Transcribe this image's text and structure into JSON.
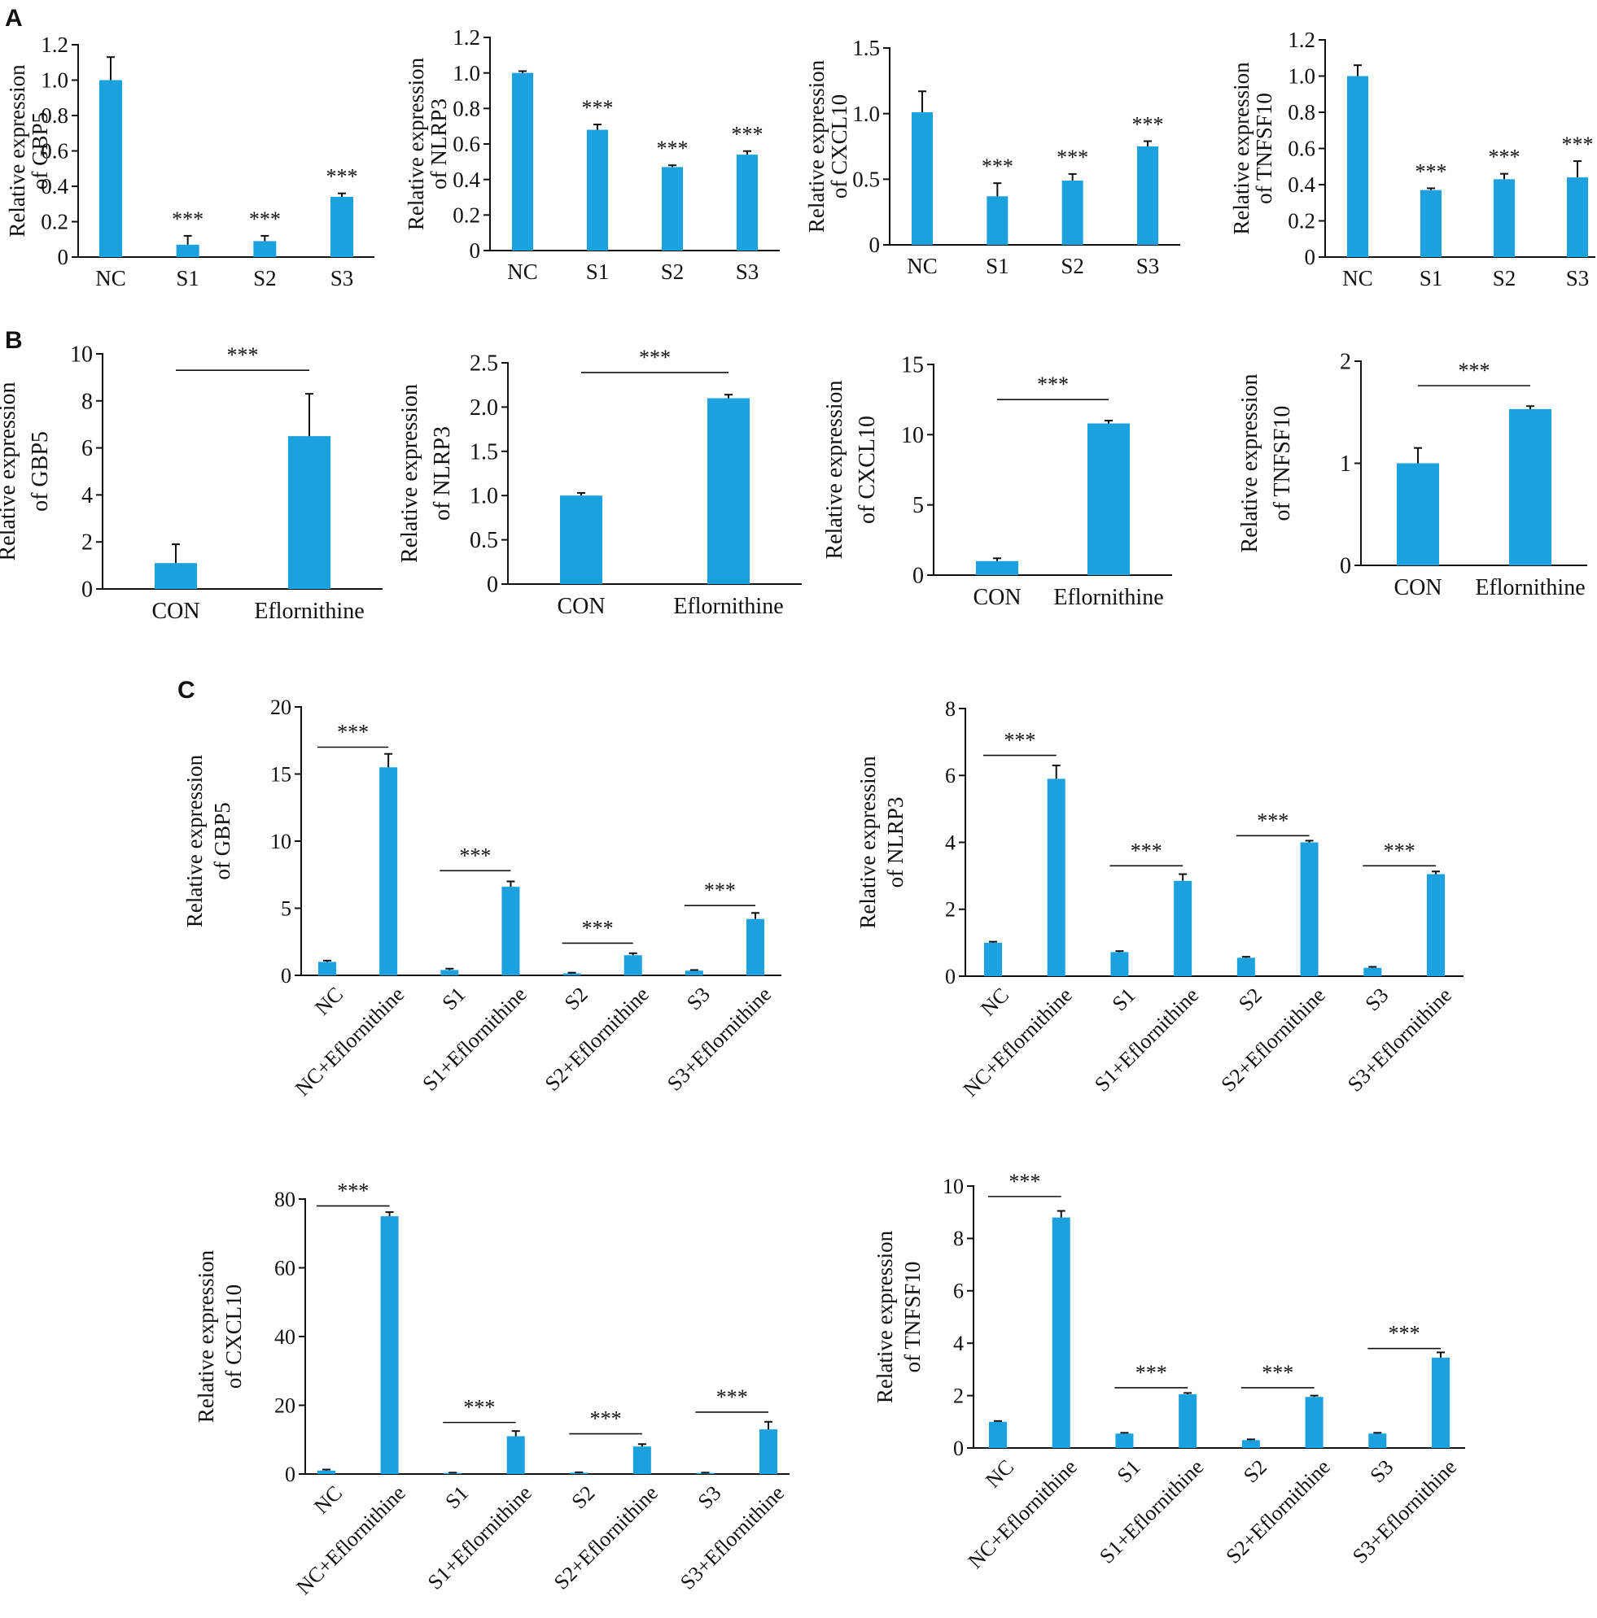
{
  "colors": {
    "bar": "#1BA1DE",
    "ink": "#111111",
    "background": "#FFFFFF"
  },
  "panels": [
    "A",
    "B",
    "C"
  ],
  "chart_data": [
    {
      "type": "bar",
      "panel": "A",
      "title": "",
      "xlabel": "",
      "ylabel": [
        "Relative expression",
        "of GBP5"
      ],
      "categories": [
        "NC",
        "S1",
        "S2",
        "S3"
      ],
      "values": [
        1.0,
        0.07,
        0.09,
        0.34
      ],
      "errors": [
        0.13,
        0.05,
        0.03,
        0.02
      ],
      "significance": [
        "",
        "***",
        "***",
        "***"
      ],
      "comparisons": [],
      "ylim": [
        0,
        1.2
      ],
      "yticks": [
        "0",
        "0.2",
        "0.4",
        "0.6",
        "0.8",
        "1.0",
        "1.2"
      ],
      "rotate_xticks": false
    },
    {
      "type": "bar",
      "panel": "A",
      "title": "",
      "xlabel": "",
      "ylabel": [
        "Relative expression",
        "of NLRP3"
      ],
      "categories": [
        "NC",
        "S1",
        "S2",
        "S3"
      ],
      "values": [
        1.0,
        0.68,
        0.47,
        0.54
      ],
      "errors": [
        0.01,
        0.03,
        0.01,
        0.02
      ],
      "significance": [
        "",
        "***",
        "***",
        "***"
      ],
      "comparisons": [],
      "ylim": [
        0,
        1.2
      ],
      "yticks": [
        "0",
        "0.2",
        "0.4",
        "0.6",
        "0.8",
        "1.0",
        "1.2"
      ],
      "rotate_xticks": false
    },
    {
      "type": "bar",
      "panel": "A",
      "title": "",
      "xlabel": "",
      "ylabel": [
        "Relative expression",
        "of CXCL10"
      ],
      "categories": [
        "NC",
        "S1",
        "S2",
        "S3"
      ],
      "values": [
        1.01,
        0.37,
        0.49,
        0.75
      ],
      "errors": [
        0.16,
        0.1,
        0.05,
        0.04
      ],
      "significance": [
        "",
        "***",
        "***",
        "***"
      ],
      "comparisons": [],
      "ylim": [
        0,
        1.5
      ],
      "yticks": [
        "0",
        "0.5",
        "1.0",
        "1.5"
      ],
      "rotate_xticks": false
    },
    {
      "type": "bar",
      "panel": "A",
      "title": "",
      "xlabel": "",
      "ylabel": [
        "Relative expression",
        "of TNFSF10"
      ],
      "categories": [
        "NC",
        "S1",
        "S2",
        "S3"
      ],
      "values": [
        1.0,
        0.37,
        0.43,
        0.44
      ],
      "errors": [
        0.06,
        0.01,
        0.03,
        0.09
      ],
      "significance": [
        "",
        "***",
        "***",
        "***"
      ],
      "comparisons": [],
      "ylim": [
        0,
        1.2
      ],
      "yticks": [
        "0",
        "0.2",
        "0.4",
        "0.6",
        "0.8",
        "1.0",
        "1.2"
      ],
      "rotate_xticks": false
    },
    {
      "type": "bar",
      "panel": "B",
      "title": "",
      "xlabel": "",
      "ylabel": [
        "Relative expression",
        "of GBP5"
      ],
      "categories": [
        "CON",
        "Eflornithine"
      ],
      "values": [
        1.1,
        6.5
      ],
      "errors": [
        0.8,
        1.8
      ],
      "significance": [
        "",
        ""
      ],
      "comparisons": [
        {
          "from": 0,
          "to": 1,
          "label": "***"
        }
      ],
      "ylim": [
        0,
        10
      ],
      "yticks": [
        "0",
        "2",
        "4",
        "6",
        "8",
        "10"
      ],
      "rotate_xticks": false
    },
    {
      "type": "bar",
      "panel": "B",
      "title": "",
      "xlabel": "",
      "ylabel": [
        "Relative expression",
        "of NLRP3"
      ],
      "categories": [
        "CON",
        "Eflornithine"
      ],
      "values": [
        1.0,
        2.1
      ],
      "errors": [
        0.03,
        0.04
      ],
      "significance": [
        "",
        ""
      ],
      "comparisons": [
        {
          "from": 0,
          "to": 1,
          "label": "***"
        }
      ],
      "ylim": [
        0,
        2.5
      ],
      "yticks": [
        "0",
        "0.5",
        "1.0",
        "1.5",
        "2.0",
        "2.5"
      ],
      "rotate_xticks": false
    },
    {
      "type": "bar",
      "panel": "B",
      "title": "",
      "xlabel": "",
      "ylabel": [
        "Relative expression",
        "of CXCL10"
      ],
      "categories": [
        "CON",
        "Eflornithine"
      ],
      "values": [
        1.0,
        10.8
      ],
      "errors": [
        0.2,
        0.2
      ],
      "significance": [
        "",
        ""
      ],
      "comparisons": [
        {
          "from": 0,
          "to": 1,
          "label": "***"
        }
      ],
      "ylim": [
        0,
        15
      ],
      "yticks": [
        "0",
        "5",
        "10",
        "15"
      ],
      "rotate_xticks": false
    },
    {
      "type": "bar",
      "panel": "B",
      "title": "",
      "xlabel": "",
      "ylabel": [
        "Relative expression",
        "of TNFSF10"
      ],
      "categories": [
        "CON",
        "Eflornithine"
      ],
      "values": [
        1.0,
        1.53
      ],
      "errors": [
        0.15,
        0.03
      ],
      "significance": [
        "",
        ""
      ],
      "comparisons": [
        {
          "from": 0,
          "to": 1,
          "label": "***"
        }
      ],
      "ylim": [
        0,
        2
      ],
      "yticks": [
        "0",
        "1",
        "2"
      ],
      "rotate_xticks": false
    },
    {
      "type": "bar",
      "panel": "C",
      "title": "",
      "xlabel": "",
      "ylabel": [
        "Relative expression",
        "of GBP5"
      ],
      "categories": [
        "NC",
        "NC+Eflornithine",
        "S1",
        "S1+Eflornithine",
        "S2",
        "S2+Eflornithine",
        "S3",
        "S3+Eflornithine"
      ],
      "values": [
        1.0,
        15.5,
        0.4,
        6.6,
        0.15,
        1.5,
        0.35,
        4.2
      ],
      "errors": [
        0.1,
        1.0,
        0.1,
        0.4,
        0.05,
        0.15,
        0.05,
        0.45
      ],
      "significance": [
        "",
        "",
        "",
        "",
        "",
        "",
        "",
        ""
      ],
      "comparisons": [
        {
          "from": 0,
          "to": 1,
          "label": "***",
          "at": 17.0
        },
        {
          "from": 2,
          "to": 3,
          "label": "***",
          "at": 7.8
        },
        {
          "from": 4,
          "to": 5,
          "label": "***",
          "at": 2.4
        },
        {
          "from": 6,
          "to": 7,
          "label": "***",
          "at": 5.2
        }
      ],
      "ylim": [
        0,
        20
      ],
      "yticks": [
        "0",
        "5",
        "10",
        "15",
        "20"
      ],
      "rotate_xticks": true
    },
    {
      "type": "bar",
      "panel": "C",
      "title": "",
      "xlabel": "",
      "ylabel": [
        "Relative expression",
        "of NLRP3"
      ],
      "categories": [
        "NC",
        "NC+Eflornithine",
        "S1",
        "S1+Eflornithine",
        "S2",
        "S2+Eflornithine",
        "S3",
        "S3+Eflornithine"
      ],
      "values": [
        1.0,
        5.9,
        0.72,
        2.85,
        0.55,
        4.0,
        0.25,
        3.05
      ],
      "errors": [
        0.03,
        0.4,
        0.03,
        0.2,
        0.03,
        0.05,
        0.03,
        0.08
      ],
      "significance": [
        "",
        "",
        "",
        "",
        "",
        "",
        "",
        ""
      ],
      "comparisons": [
        {
          "from": 0,
          "to": 1,
          "label": "***",
          "at": 6.6
        },
        {
          "from": 2,
          "to": 3,
          "label": "***",
          "at": 3.3
        },
        {
          "from": 4,
          "to": 5,
          "label": "***",
          "at": 4.2
        },
        {
          "from": 6,
          "to": 7,
          "label": "***",
          "at": 3.3
        }
      ],
      "ylim": [
        0,
        8
      ],
      "yticks": [
        "0",
        "2",
        "4",
        "6",
        "8"
      ],
      "rotate_xticks": true
    },
    {
      "type": "bar",
      "panel": "C",
      "title": "",
      "xlabel": "",
      "ylabel": [
        "Relative expression",
        "of CXCL10"
      ],
      "categories": [
        "NC",
        "NC+Eflornithine",
        "S1",
        "S1+Eflornithine",
        "S2",
        "S2+Eflornithine",
        "S3",
        "S3+Eflornithine"
      ],
      "values": [
        1.0,
        75.0,
        0.3,
        11.0,
        0.4,
        8.0,
        0.3,
        13.0
      ],
      "errors": [
        0.3,
        1.2,
        0.1,
        1.5,
        0.1,
        0.7,
        0.1,
        2.2
      ],
      "significance": [
        "",
        "",
        "",
        "",
        "",
        "",
        "",
        ""
      ],
      "comparisons": [
        {
          "from": 0,
          "to": 1,
          "label": "***",
          "at": 78.0
        },
        {
          "from": 2,
          "to": 3,
          "label": "***",
          "at": 15.0
        },
        {
          "from": 4,
          "to": 5,
          "label": "***",
          "at": 11.7
        },
        {
          "from": 6,
          "to": 7,
          "label": "***",
          "at": 18.0
        }
      ],
      "ylim": [
        0,
        80
      ],
      "yticks": [
        "0",
        "20",
        "40",
        "60",
        "80"
      ],
      "rotate_xticks": true
    },
    {
      "type": "bar",
      "panel": "C",
      "title": "",
      "xlabel": "",
      "ylabel": [
        "Relative expression",
        "of TNFSF10"
      ],
      "categories": [
        "NC",
        "NC+Eflornithine",
        "S1",
        "S1+Eflornithine",
        "S2",
        "S2+Eflornithine",
        "S3",
        "S3+Eflornithine"
      ],
      "values": [
        1.0,
        8.8,
        0.55,
        2.05,
        0.3,
        1.95,
        0.55,
        3.45
      ],
      "errors": [
        0.03,
        0.25,
        0.03,
        0.05,
        0.03,
        0.05,
        0.03,
        0.2
      ],
      "significance": [
        "",
        "",
        "",
        "",
        "",
        "",
        "",
        ""
      ],
      "comparisons": [
        {
          "from": 0,
          "to": 1,
          "label": "***",
          "at": 9.6
        },
        {
          "from": 2,
          "to": 3,
          "label": "***",
          "at": 2.3
        },
        {
          "from": 4,
          "to": 5,
          "label": "***",
          "at": 2.3
        },
        {
          "from": 6,
          "to": 7,
          "label": "***",
          "at": 3.8
        }
      ],
      "ylim": [
        0,
        10
      ],
      "yticks": [
        "0",
        "2",
        "4",
        "6",
        "8",
        "10"
      ],
      "rotate_xticks": true
    }
  ]
}
